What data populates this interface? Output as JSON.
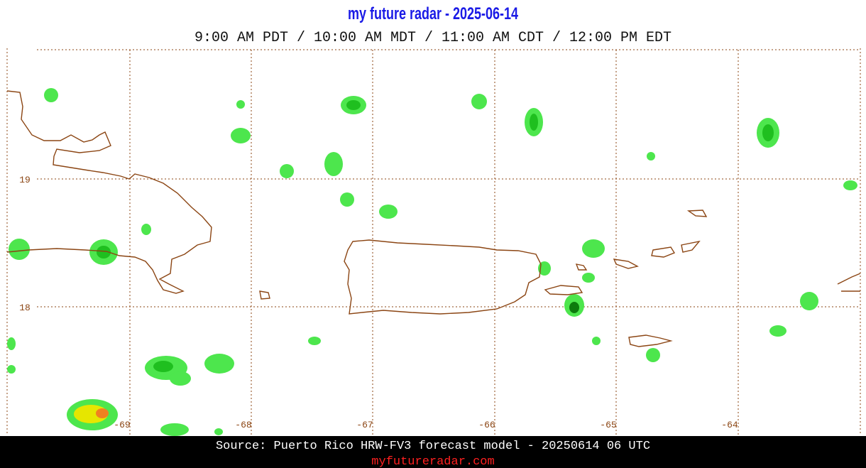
{
  "header": {
    "title": "my future radar - 2025-06-14",
    "subtitle": "9:00 AM PDT / 10:00 AM MDT / 11:00 AM CDT / 12:00 PM EDT"
  },
  "map": {
    "lat_labels": [
      "19",
      "18"
    ],
    "lon_labels": [
      "-69",
      "-68",
      "-67",
      "-66",
      "-65",
      "-64"
    ]
  },
  "footer": {
    "source": "Source: Puerto Rico HRW-FV3 forecast model - 20250614 06 UTC",
    "link": "myfutureradar.com"
  }
}
